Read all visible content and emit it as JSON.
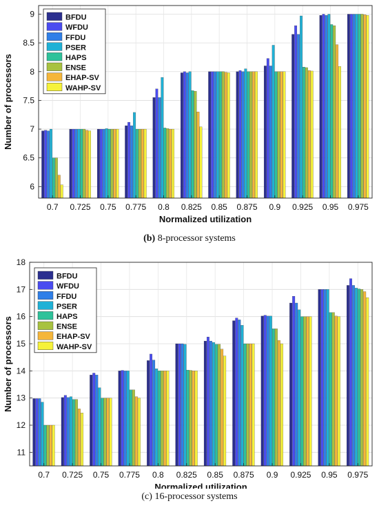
{
  "series_colors": [
    "#2b2f8f",
    "#4a4cf0",
    "#2f7fe8",
    "#1fb1d6",
    "#2ec29a",
    "#a8c240",
    "#f5b63a",
    "#f6f23a"
  ],
  "chart_data": [
    {
      "type": "bar",
      "caption_label": "(b)",
      "caption_text": "8-processor systems",
      "xlabel": "Normalized utilization",
      "ylabel": "Number of processors",
      "ylim": [
        5.8,
        9.15
      ],
      "yticks": [
        "6",
        "6.5",
        "7",
        "7.5",
        "8",
        "8.5",
        "9"
      ],
      "ytick_values": [
        6,
        6.5,
        7,
        7.5,
        8,
        8.5,
        9
      ],
      "categories": [
        "0.7",
        "0.725",
        "0.75",
        "0.775",
        "0.8",
        "0.825",
        "0.85",
        "0.875",
        "0.9",
        "0.925",
        "0.95",
        "0.975"
      ],
      "legend_position": "top-left",
      "grid": true,
      "series": [
        {
          "name": "BFDU",
          "values": [
            6.97,
            7.0,
            7.0,
            7.06,
            7.55,
            7.98,
            8.0,
            8.0,
            8.1,
            8.65,
            8.98,
            9.0
          ]
        },
        {
          "name": "WFDU",
          "values": [
            6.98,
            7.0,
            7.0,
            7.12,
            7.7,
            8.0,
            8.0,
            8.02,
            8.23,
            8.8,
            9.0,
            9.0
          ]
        },
        {
          "name": "FFDU",
          "values": [
            6.97,
            7.0,
            7.0,
            7.06,
            7.55,
            7.98,
            8.0,
            8.0,
            8.1,
            8.65,
            8.98,
            9.0
          ]
        },
        {
          "name": "PSER",
          "values": [
            7.0,
            7.0,
            7.01,
            7.29,
            7.9,
            8.0,
            8.0,
            8.05,
            8.46,
            8.97,
            9.0,
            9.0
          ]
        },
        {
          "name": "HAPS",
          "values": [
            6.5,
            7.0,
            7.0,
            7.0,
            7.02,
            7.67,
            8.0,
            8.0,
            8.0,
            8.08,
            8.82,
            9.0
          ]
        },
        {
          "name": "ENSE",
          "values": [
            6.5,
            7.0,
            7.0,
            7.0,
            7.01,
            7.66,
            8.0,
            8.0,
            8.0,
            8.07,
            8.8,
            9.0
          ]
        },
        {
          "name": "EHAP-SV",
          "values": [
            6.2,
            6.98,
            7.0,
            7.0,
            7.0,
            7.3,
            7.99,
            8.0,
            8.0,
            8.02,
            8.47,
            8.99
          ]
        },
        {
          "name": "WAHP-SV",
          "values": [
            6.03,
            6.97,
            7.0,
            7.0,
            7.0,
            7.04,
            7.98,
            8.0,
            8.0,
            8.01,
            8.09,
            8.98
          ]
        }
      ]
    },
    {
      "type": "bar",
      "caption_label": "(c)",
      "caption_text": "16-processor systems",
      "xlabel": "Normalized utilization",
      "ylabel": "Number of processors",
      "ylim": [
        10.5,
        18
      ],
      "yticks": [
        "11",
        "12",
        "13",
        "14",
        "15",
        "16",
        "17",
        "18"
      ],
      "ytick_values": [
        11,
        12,
        13,
        14,
        15,
        16,
        17,
        18
      ],
      "categories": [
        "0.7",
        "0.725",
        "0.75",
        "0.775",
        "0.8",
        "0.825",
        "0.85",
        "0.875",
        "0.9",
        "0.925",
        "0.95",
        "0.975"
      ],
      "legend_position": "top-left",
      "grid": true,
      "series": [
        {
          "name": "BFDU",
          "values": [
            12.98,
            13.02,
            13.85,
            14.0,
            14.38,
            15.0,
            15.1,
            15.85,
            16.02,
            16.5,
            17.0,
            17.15
          ]
        },
        {
          "name": "WFDU",
          "values": [
            12.98,
            13.1,
            13.92,
            14.02,
            14.62,
            15.0,
            15.25,
            15.95,
            16.05,
            16.75,
            17.0,
            17.4
          ]
        },
        {
          "name": "FFDU",
          "values": [
            12.98,
            13.02,
            13.85,
            14.0,
            14.4,
            15.0,
            15.1,
            15.88,
            16.02,
            16.5,
            17.0,
            17.15
          ]
        },
        {
          "name": "PSER",
          "values": [
            12.85,
            13.05,
            13.38,
            14.0,
            14.08,
            14.98,
            15.05,
            15.68,
            16.02,
            16.25,
            17.0,
            17.05
          ]
        },
        {
          "name": "HAPS",
          "values": [
            12.0,
            12.95,
            13.0,
            13.3,
            14.0,
            14.03,
            14.98,
            15.0,
            15.55,
            16.0,
            16.15,
            17.02
          ]
        },
        {
          "name": "ENSE",
          "values": [
            12.0,
            12.95,
            13.0,
            13.3,
            14.0,
            14.02,
            14.98,
            15.0,
            15.55,
            16.0,
            16.15,
            17.0
          ]
        },
        {
          "name": "EHAP-SV",
          "values": [
            12.0,
            12.6,
            13.0,
            13.05,
            14.0,
            14.0,
            14.8,
            15.0,
            15.12,
            16.0,
            16.02,
            16.92
          ]
        },
        {
          "name": "WAHP-SV",
          "values": [
            12.0,
            12.45,
            13.0,
            13.0,
            14.0,
            14.0,
            14.55,
            15.0,
            15.0,
            16.0,
            16.0,
            16.7
          ]
        }
      ]
    }
  ]
}
